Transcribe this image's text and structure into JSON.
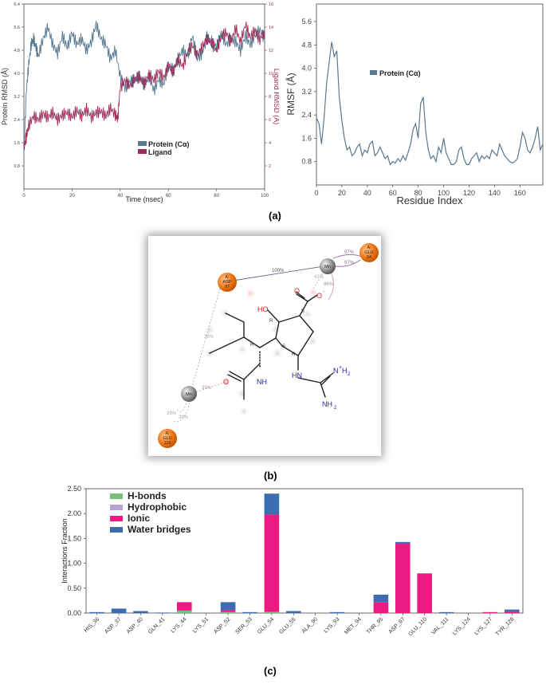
{
  "labels": {
    "a": "(a)",
    "b": "(b)",
    "c": "(c)"
  },
  "chart_data": [
    {
      "type": "line",
      "id": "rmsd",
      "xlabel": "Time (nsec)",
      "ylabel": "Protein RMSD (Å)",
      "y2label": "Ligand RMSD (Å)",
      "xlim": [
        0,
        100
      ],
      "ylim": [
        0,
        6.4
      ],
      "y2lim": [
        0,
        16
      ],
      "xticks": [
        0,
        20,
        40,
        60,
        80,
        100
      ],
      "yticks": [
        0.8,
        1.6,
        2.4,
        3.2,
        4.0,
        4.8,
        5.6,
        6.4
      ],
      "y2ticks": [
        2,
        4,
        6,
        8,
        10,
        12,
        14,
        16
      ],
      "legend_position": "center",
      "series": [
        {
          "name": "Protein (Cα)",
          "axis": "left",
          "color": "#577891",
          "x": [
            0,
            1,
            2,
            3,
            4,
            5,
            6,
            8,
            10,
            12,
            14,
            16,
            18,
            20,
            22,
            24,
            26,
            28,
            30,
            32,
            34,
            36,
            38,
            40,
            42,
            44,
            46,
            48,
            50,
            52,
            54,
            56,
            58,
            60,
            62,
            64,
            66,
            68,
            70,
            72,
            74,
            76,
            78,
            80,
            82,
            84,
            86,
            88,
            90,
            92,
            94,
            96,
            98,
            100
          ],
          "y": [
            1.2,
            3.4,
            4.3,
            5.0,
            5.2,
            4.9,
            4.6,
            5.2,
            5.6,
            5.0,
            4.7,
            5.3,
            4.9,
            5.4,
            5.0,
            5.2,
            4.8,
            5.1,
            5.7,
            5.2,
            5.0,
            4.5,
            4.8,
            3.9,
            3.5,
            3.7,
            3.8,
            3.9,
            3.6,
            3.9,
            3.4,
            3.8,
            3.6,
            4.3,
            4.1,
            4.5,
            4.8,
            4.6,
            5.3,
            4.5,
            4.7,
            5.2,
            5.1,
            4.9,
            5.4,
            5.0,
            5.2,
            5.1,
            4.8,
            5.3,
            5.0,
            5.3,
            5.5,
            5.2
          ]
        },
        {
          "name": "Ligand",
          "axis": "right",
          "color": "#9e2d5a",
          "x": [
            0,
            1,
            2,
            4,
            6,
            8,
            10,
            12,
            14,
            16,
            18,
            20,
            22,
            24,
            26,
            28,
            30,
            32,
            34,
            36,
            38,
            39,
            40,
            42,
            44,
            46,
            48,
            50,
            52,
            54,
            56,
            58,
            60,
            62,
            64,
            66,
            68,
            70,
            72,
            74,
            76,
            78,
            80,
            82,
            84,
            86,
            88,
            90,
            92,
            94,
            96,
            98,
            100
          ],
          "y": [
            3.5,
            4.5,
            5.5,
            6.3,
            6.0,
            6.5,
            6.2,
            6.6,
            6.0,
            6.4,
            6.6,
            6.2,
            6.8,
            6.3,
            6.9,
            6.2,
            6.6,
            6.7,
            6.3,
            7.0,
            6.4,
            6.1,
            8.8,
            9.4,
            8.9,
            9.5,
            9.7,
            9.1,
            9.9,
            9.4,
            10.2,
            9.6,
            10.6,
            10.1,
            11.2,
            10.6,
            11.8,
            12.4,
            11.6,
            12.2,
            13.1,
            12.6,
            12.0,
            13.2,
            13.5,
            12.8,
            13.9,
            12.7,
            14.2,
            13.1,
            13.7,
            12.9,
            13.6
          ]
        }
      ]
    },
    {
      "type": "line",
      "id": "rmsf",
      "xlabel": "Residue Index",
      "ylabel": "RMSF (Å)",
      "xlim": [
        0,
        178
      ],
      "ylim": [
        0,
        6.2
      ],
      "xticks": [
        0,
        20,
        40,
        60,
        80,
        100,
        120,
        140,
        160
      ],
      "yticks": [
        0.8,
        1.6,
        2.4,
        3.2,
        4.0,
        4.8,
        5.6
      ],
      "legend_position": "upper-center",
      "series": [
        {
          "name": "Protein (Cα)",
          "color": "#577891",
          "x": [
            0,
            2,
            4,
            6,
            8,
            10,
            12,
            14,
            16,
            18,
            20,
            22,
            24,
            26,
            28,
            30,
            32,
            34,
            36,
            38,
            40,
            42,
            44,
            46,
            48,
            50,
            52,
            54,
            56,
            58,
            60,
            62,
            64,
            66,
            68,
            70,
            72,
            74,
            76,
            78,
            80,
            82,
            84,
            86,
            88,
            90,
            92,
            94,
            96,
            98,
            100,
            102,
            104,
            106,
            108,
            110,
            112,
            114,
            116,
            118,
            120,
            122,
            124,
            126,
            128,
            130,
            132,
            134,
            136,
            138,
            140,
            142,
            144,
            146,
            148,
            150,
            152,
            154,
            156,
            158,
            160,
            162,
            164,
            166,
            168,
            170,
            172,
            174,
            176,
            178
          ],
          "y": [
            2.3,
            2.1,
            1.4,
            2.3,
            3.5,
            4.2,
            4.9,
            4.4,
            4.6,
            3.0,
            2.2,
            1.6,
            1.2,
            1.3,
            1.0,
            1.1,
            1.3,
            1.4,
            1.0,
            1.2,
            1.1,
            1.4,
            1.5,
            1.0,
            1.1,
            1.3,
            1.1,
            0.9,
            1.0,
            0.7,
            0.8,
            0.75,
            0.9,
            0.8,
            1.0,
            0.85,
            1.1,
            1.4,
            1.9,
            2.1,
            1.6,
            2.8,
            3.0,
            1.8,
            1.2,
            0.9,
            1.0,
            0.8,
            1.3,
            1.1,
            1.6,
            1.1,
            0.9,
            0.7,
            0.7,
            0.8,
            1.2,
            1.3,
            0.9,
            0.7,
            0.7,
            0.9,
            1.0,
            1.1,
            0.8,
            1.0,
            0.9,
            1.0,
            0.9,
            1.2,
            1.1,
            1.0,
            1.4,
            1.2,
            1.0,
            0.9,
            0.8,
            0.75,
            0.8,
            0.9,
            1.3,
            1.8,
            1.6,
            1.2,
            1.1,
            1.3,
            1.6,
            2.0,
            1.2,
            1.4
          ]
        }
      ]
    },
    {
      "type": "bar",
      "id": "interactions",
      "ylabel": "Interactions Fraction",
      "ylim": [
        0,
        2.5
      ],
      "yticks": [
        0.0,
        0.5,
        1.0,
        1.5,
        2.0,
        2.5
      ],
      "stacked": true,
      "legend_position": "top-left",
      "categories": [
        "HIS_36",
        "ASP_37",
        "ASP_40",
        "GLN_41",
        "LYS_44",
        "LYS_51",
        "ASP_52",
        "SER_53",
        "GLU_54",
        "GLU_55",
        "ALA_90",
        "LYS_93",
        "MET_94",
        "THR_95",
        "ASP_97",
        "GLU_110",
        "VAL_111",
        "LYS_124",
        "LYS_127",
        "TYR_128"
      ],
      "series": [
        {
          "name": "H-bonds",
          "color": "#77c07a",
          "values": [
            0,
            0,
            0,
            0,
            0.05,
            0,
            0.02,
            0,
            0.02,
            0,
            0,
            0,
            0,
            0,
            0,
            0,
            0,
            0,
            0,
            0
          ]
        },
        {
          "name": "Hydrophobic",
          "color": "#b5a4d2",
          "values": [
            0,
            0,
            0,
            0,
            0,
            0,
            0,
            0,
            0,
            0,
            0,
            0,
            0,
            0,
            0,
            0,
            0,
            0,
            0,
            0
          ]
        },
        {
          "name": "Ionic",
          "color": "#ea1b82",
          "values": [
            0,
            0,
            0,
            0,
            0.17,
            0,
            0.03,
            0,
            1.96,
            0,
            0,
            0,
            0,
            0.22,
            1.4,
            0.79,
            0,
            0,
            0.02,
            0.03
          ]
        },
        {
          "name": "Water bridges",
          "color": "#3a6eb0",
          "values": [
            0.02,
            0.09,
            0.04,
            0.01,
            0,
            0,
            0.17,
            0.02,
            0.42,
            0.04,
            0,
            0.02,
            0,
            0.15,
            0.03,
            0.01,
            0.02,
            0,
            0,
            0.04
          ]
        }
      ]
    }
  ],
  "diagram": {
    "residues": [
      {
        "id": "asp97",
        "text_1": "A:",
        "text_2": "ASP",
        "text_3": "97"
      },
      {
        "id": "glu54",
        "text_1": "A:",
        "text_2": "GLU",
        "text_3": "54"
      },
      {
        "id": "glu110",
        "text_1": "A:",
        "text_2": "GLU",
        "text_3": "110"
      }
    ],
    "metals": [
      "Mn",
      "Mn"
    ],
    "percentages": [
      "100%",
      "97%",
      "97%",
      "41%",
      "86%",
      "39%",
      "39%",
      "39%",
      "39%"
    ],
    "atoms": {
      "ho": "HO",
      "nh": "NH",
      "hn": "HN",
      "nh2": "NH",
      "nh2_sub": "2",
      "nplus_h2": "N",
      "plus": "+",
      "h2": "H",
      "h2_sub": "2",
      "o": "O",
      "o_minus": "O",
      "minus": "-",
      "o_amide": "O"
    },
    "stereo": [
      "R",
      "R",
      "S",
      "R",
      "S"
    ]
  }
}
